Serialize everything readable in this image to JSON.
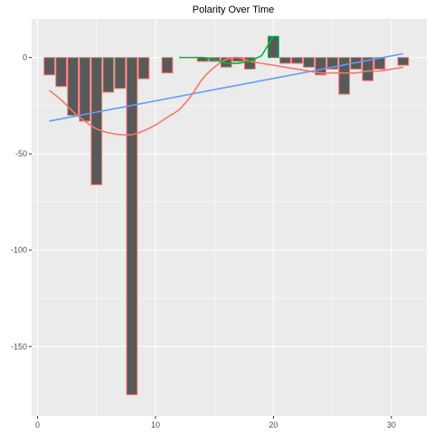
{
  "chart_data": {
    "type": "bar",
    "title": "Polarity Over Time",
    "xlabel": "",
    "ylabel": "",
    "xlim": [
      -0.5,
      33
    ],
    "ylim": [
      -186,
      20
    ],
    "x_ticks": [
      0,
      10,
      20,
      30
    ],
    "y_ticks": [
      0,
      -50,
      -100,
      -150
    ],
    "grid": true,
    "legend": "none",
    "colors": {
      "panel_bg": "#ebebeb",
      "grid": "#ffffff",
      "bar_neg_fill": "#595959",
      "bar_neg_outline": "#f8766d",
      "bar_pos_fill": "#595959",
      "bar_pos_outline": "#00ba38",
      "trend_line": "#619cff",
      "smooth_line": "#f8766d",
      "positive_line": "#00ba38"
    },
    "bars": {
      "x": [
        1,
        2,
        3,
        4,
        5,
        6,
        7,
        8,
        9,
        10,
        11,
        12,
        13,
        14,
        15,
        16,
        17,
        18,
        19,
        20,
        21,
        22,
        23,
        24,
        25,
        26,
        27,
        28,
        29,
        30,
        31
      ],
      "values": [
        -9,
        -15,
        -30,
        -33,
        -66,
        -18,
        -16,
        -175,
        -11,
        0,
        -8,
        0,
        0,
        -2,
        -2,
        -5,
        -2,
        -6,
        0,
        11,
        -3,
        -3,
        -5,
        -9,
        -6,
        -19,
        -6,
        -12,
        -6,
        0,
        -4
      ]
    },
    "lines": [
      {
        "role": "linear-trend",
        "x": [
          1,
          31
        ],
        "y": [
          -33,
          2
        ]
      },
      {
        "role": "smooth",
        "x": [
          1,
          2,
          3,
          4,
          5,
          6,
          7,
          8,
          9,
          10,
          11,
          12,
          13,
          14,
          15,
          16,
          17,
          18,
          19,
          20,
          21,
          22,
          23,
          24,
          25,
          26,
          27,
          28,
          29,
          30,
          31
        ],
        "y": [
          -17,
          -22,
          -28,
          -33,
          -37,
          -39,
          -40,
          -40,
          -38,
          -35,
          -31,
          -27,
          -20,
          -11,
          -5,
          -1,
          0,
          -2,
          -3,
          -4,
          -5,
          -6,
          -7,
          -8,
          -8,
          -8,
          -8,
          -7,
          -7,
          -6,
          -5
        ]
      },
      {
        "role": "positive",
        "x": [
          12,
          13,
          14,
          15,
          16,
          17,
          18,
          19,
          20
        ],
        "y": [
          0,
          0,
          0,
          -1,
          -3,
          -3,
          -2,
          1,
          11
        ]
      }
    ]
  }
}
